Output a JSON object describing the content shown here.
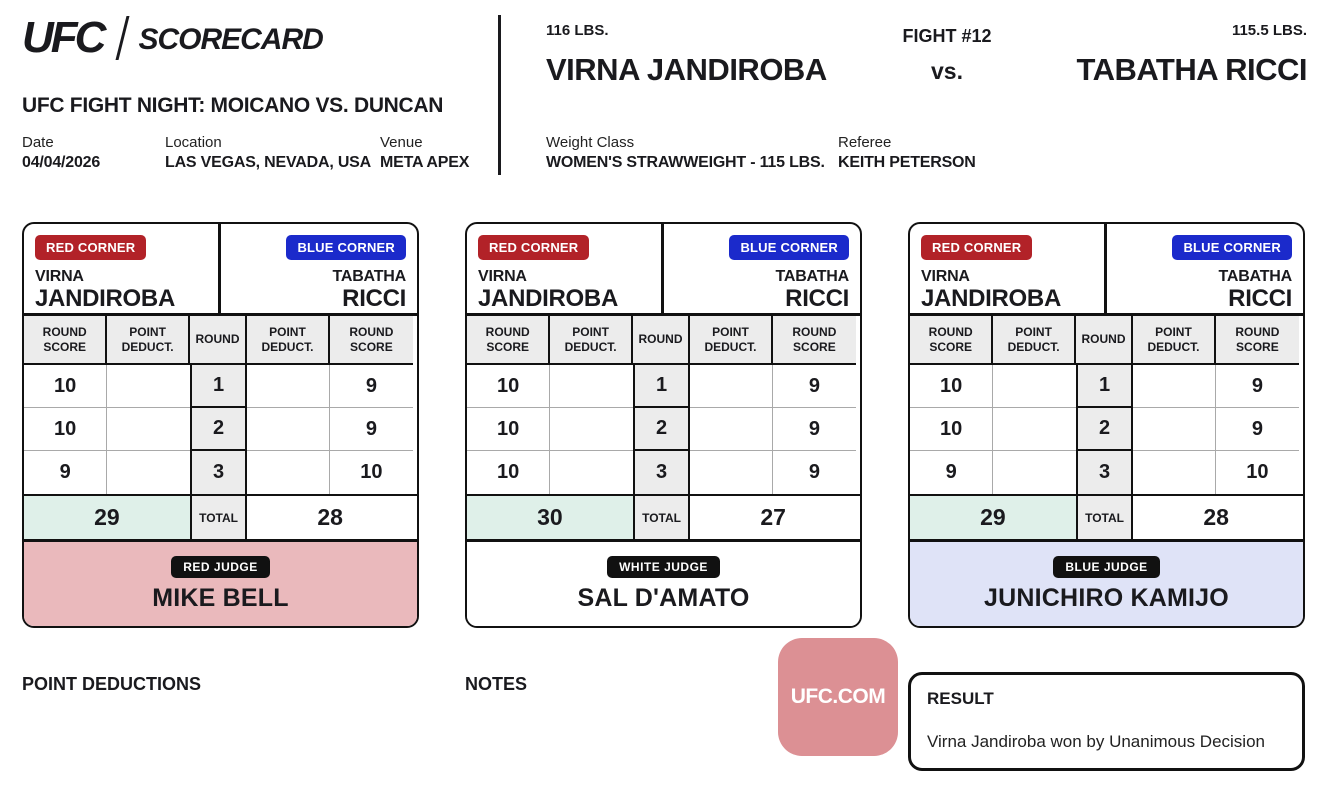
{
  "colors": {
    "red_badge": "#b22228",
    "blue_badge": "#1b2acb",
    "judge_badge": "#111111",
    "total_highlight": "#dff0e9",
    "tile": "#dc9094",
    "footer_red": "#eab9bc",
    "footer_white": "#ffffff",
    "footer_blue": "#dfe3f7"
  },
  "header": {
    "logo_ufc": "UFC",
    "logo_scorecard": "SCORECARD",
    "event_title": "UFC FIGHT NIGHT: MOICANO VS. DUNCAN",
    "date_label": "Date",
    "date_value": "04/04/2026",
    "location_label": "Location",
    "location_value": "LAS VEGAS, NEVADA, USA",
    "venue_label": "Venue",
    "venue_value": "META APEX"
  },
  "fight": {
    "red_weight": "116 LBS.",
    "red_name": "VIRNA JANDIROBA",
    "fight_number": "FIGHT #12",
    "vs_label": "vs.",
    "blue_weight": "115.5 LBS.",
    "blue_name": "TABATHA RICCI",
    "weight_class_label": "Weight Class",
    "weight_class_value": "WOMEN'S STRAWWEIGHT - 115 LBS.",
    "referee_label": "Referee",
    "referee_value": "KEITH PETERSON"
  },
  "table_headers": {
    "round_score_left": "ROUND SCORE",
    "point_deduct_left": "POINT DEDUCT.",
    "round": "ROUND",
    "point_deduct_right": "POINT DEDUCT.",
    "round_score_right": "ROUND SCORE"
  },
  "scorecards": [
    {
      "red_corner_label": "RED CORNER",
      "blue_corner_label": "BLUE CORNER",
      "red_first": "VIRNA",
      "red_last": "JANDIROBA",
      "blue_first": "TABATHA",
      "blue_last": "RICCI",
      "rounds": [
        {
          "round": "1",
          "red_score": "10",
          "red_deduct": "",
          "blue_deduct": "",
          "blue_score": "9"
        },
        {
          "round": "2",
          "red_score": "10",
          "red_deduct": "",
          "blue_deduct": "",
          "blue_score": "9"
        },
        {
          "round": "3",
          "red_score": "9",
          "red_deduct": "",
          "blue_deduct": "",
          "blue_score": "10"
        }
      ],
      "total_label": "TOTAL",
      "red_total": "29",
      "blue_total": "28",
      "judge_badge": "RED JUDGE",
      "judge_name": "MIKE BELL",
      "footer_bg": "#eab9bc"
    },
    {
      "red_corner_label": "RED CORNER",
      "blue_corner_label": "BLUE CORNER",
      "red_first": "VIRNA",
      "red_last": "JANDIROBA",
      "blue_first": "TABATHA",
      "blue_last": "RICCI",
      "rounds": [
        {
          "round": "1",
          "red_score": "10",
          "red_deduct": "",
          "blue_deduct": "",
          "blue_score": "9"
        },
        {
          "round": "2",
          "red_score": "10",
          "red_deduct": "",
          "blue_deduct": "",
          "blue_score": "9"
        },
        {
          "round": "3",
          "red_score": "10",
          "red_deduct": "",
          "blue_deduct": "",
          "blue_score": "9"
        }
      ],
      "total_label": "TOTAL",
      "red_total": "30",
      "blue_total": "27",
      "judge_badge": "WHITE JUDGE",
      "judge_name": "SAL D'AMATO",
      "footer_bg": "#ffffff"
    },
    {
      "red_corner_label": "RED CORNER",
      "blue_corner_label": "BLUE CORNER",
      "red_first": "VIRNA",
      "red_last": "JANDIROBA",
      "blue_first": "TABATHA",
      "blue_last": "RICCI",
      "rounds": [
        {
          "round": "1",
          "red_score": "10",
          "red_deduct": "",
          "blue_deduct": "",
          "blue_score": "9"
        },
        {
          "round": "2",
          "red_score": "10",
          "red_deduct": "",
          "blue_deduct": "",
          "blue_score": "9"
        },
        {
          "round": "3",
          "red_score": "9",
          "red_deduct": "",
          "blue_deduct": "",
          "blue_score": "10"
        }
      ],
      "total_label": "TOTAL",
      "red_total": "29",
      "blue_total": "28",
      "judge_badge": "BLUE JUDGE",
      "judge_name": "JUNICHIRO KAMIJO",
      "footer_bg": "#dfe3f7"
    }
  ],
  "bottom": {
    "point_deductions_label": "POINT DEDUCTIONS",
    "notes_label": "NOTES",
    "tile_label": "UFC.COM",
    "result_label": "RESULT",
    "result_text": "Virna Jandiroba won by Unanimous Decision"
  }
}
